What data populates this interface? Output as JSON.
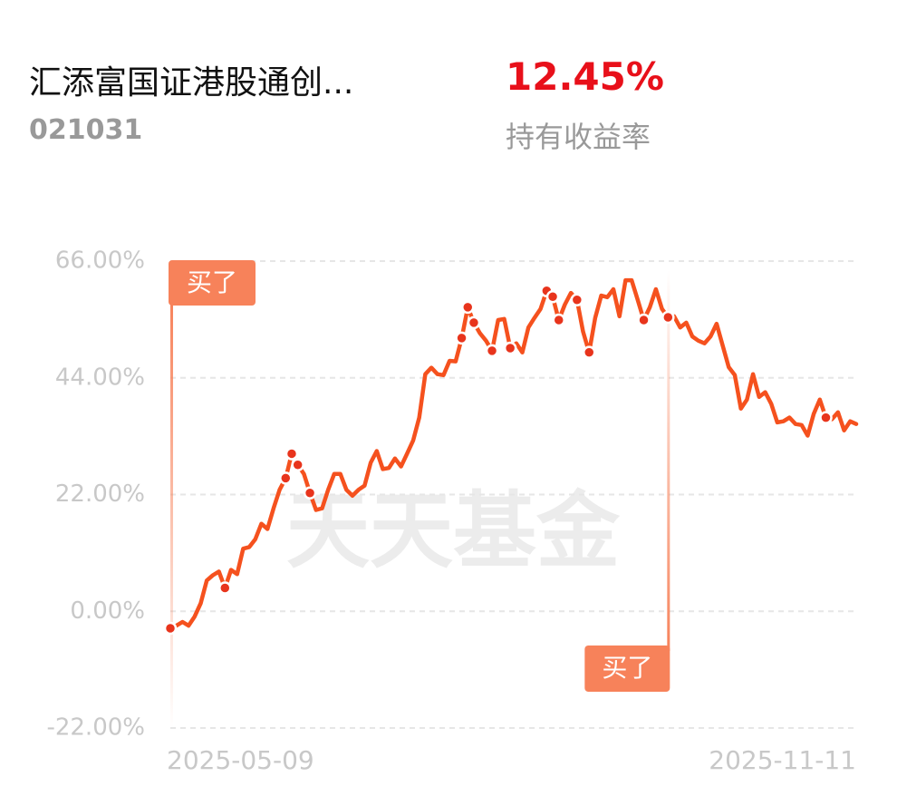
{
  "header": {
    "fund_name": "汇添富国证港股通创...",
    "fund_code": "021031",
    "return_value": "12.45%",
    "return_label": "持有收益率"
  },
  "chart_data": {
    "type": "line",
    "watermark": "天天基金",
    "categories": [
      "2025-05-09",
      null,
      null,
      null,
      null,
      null,
      null,
      null,
      null,
      null,
      null,
      null,
      null,
      null,
      null,
      null,
      null,
      null,
      null,
      null,
      null,
      null,
      null,
      null,
      null,
      null,
      null,
      null,
      null,
      null,
      null,
      null,
      null,
      null,
      null,
      null,
      null,
      null,
      null,
      null,
      null,
      null,
      null,
      null,
      null,
      null,
      null,
      null,
      null,
      null,
      null,
      null,
      null,
      null,
      null,
      null,
      null,
      null,
      null,
      null,
      null,
      null,
      null,
      null,
      null,
      null,
      null,
      null,
      null,
      null,
      null,
      null,
      null,
      null,
      null,
      null,
      null,
      null,
      null,
      null,
      null,
      null,
      null,
      null,
      null,
      null,
      null,
      null,
      null,
      null,
      null,
      null,
      null,
      null,
      null,
      null,
      null,
      null,
      null,
      null,
      null,
      null,
      null,
      null,
      null,
      null,
      null,
      null,
      null,
      null,
      null,
      null,
      null,
      "2025-11-11"
    ],
    "series": [
      {
        "color": "#f5511e",
        "style": "line",
        "values": [
          -3.2,
          -2.7,
          -2.0,
          -2.7,
          -1.0,
          1.5,
          5.8,
          6.8,
          7.5,
          4.4,
          7.8,
          7.0,
          11.8,
          12.1,
          13.6,
          16.5,
          15.5,
          19.4,
          22.9,
          25.1,
          29.7,
          27.6,
          25.9,
          22.3,
          19.1,
          19.4,
          22.9,
          25.9,
          25.9,
          22.9,
          21.8,
          22.9,
          23.7,
          28.0,
          30.2,
          26.8,
          27.0,
          28.8,
          27.3,
          29.7,
          32.2,
          36.5,
          44.7,
          45.9,
          44.7,
          44.5,
          47.2,
          47.1,
          51.5,
          57.3,
          54.4,
          52.4,
          51.0,
          49.1,
          54.9,
          55.1,
          49.6,
          50.5,
          48.8,
          53.5,
          55.3,
          57.0,
          60.4,
          59.3,
          54.9,
          57.8,
          60.0,
          58.7,
          52.7,
          48.8,
          55.3,
          59.5,
          59.2,
          60.7,
          55.6,
          62.4,
          62.4,
          58.7,
          54.9,
          57.3,
          60.7,
          57.0,
          55.4,
          55.6,
          53.5,
          54.4,
          51.8,
          51.0,
          50.5,
          51.8,
          54.2,
          50.1,
          46.0,
          44.5,
          38.2,
          39.9,
          44.7,
          40.4,
          41.3,
          39.1,
          35.6,
          35.8,
          36.5,
          35.3,
          35.1,
          33.1,
          37.2,
          39.9,
          36.5,
          36.2,
          37.5,
          34.1,
          35.8,
          35.3
        ]
      },
      {
        "color": "#e8341c",
        "style": "dots",
        "values": [
          -3.2,
          null,
          null,
          null,
          null,
          null,
          null,
          null,
          null,
          4.4,
          null,
          null,
          null,
          null,
          null,
          null,
          null,
          null,
          null,
          25.1,
          29.7,
          27.6,
          null,
          22.3,
          null,
          null,
          null,
          null,
          null,
          null,
          null,
          null,
          null,
          null,
          null,
          null,
          null,
          null,
          null,
          null,
          null,
          null,
          null,
          null,
          null,
          null,
          null,
          null,
          51.5,
          57.3,
          54.4,
          null,
          null,
          49.1,
          null,
          null,
          49.6,
          null,
          null,
          null,
          null,
          null,
          60.4,
          59.3,
          54.9,
          null,
          null,
          58.7,
          null,
          48.8,
          null,
          null,
          null,
          null,
          null,
          null,
          null,
          null,
          54.9,
          null,
          null,
          null,
          55.4,
          null,
          null,
          null,
          null,
          null,
          null,
          null,
          null,
          null,
          null,
          null,
          null,
          null,
          null,
          null,
          null,
          null,
          null,
          null,
          null,
          null,
          null,
          null,
          null,
          null,
          36.5,
          null,
          null,
          null,
          null,
          null
        ]
      }
    ],
    "buy_marks": [
      {
        "label": "买了",
        "index": 0
      },
      {
        "label": "买了",
        "index": 82
      }
    ],
    "ylim": [
      -22,
      66
    ],
    "yticks": [
      {
        "value": 66,
        "label": "66.00%"
      },
      {
        "value": 44,
        "label": "44.00%"
      },
      {
        "value": 22,
        "label": "22.00%"
      },
      {
        "value": 0,
        "label": "0.00%"
      },
      {
        "value": -22,
        "label": "-22.00%"
      }
    ],
    "grid": true
  }
}
